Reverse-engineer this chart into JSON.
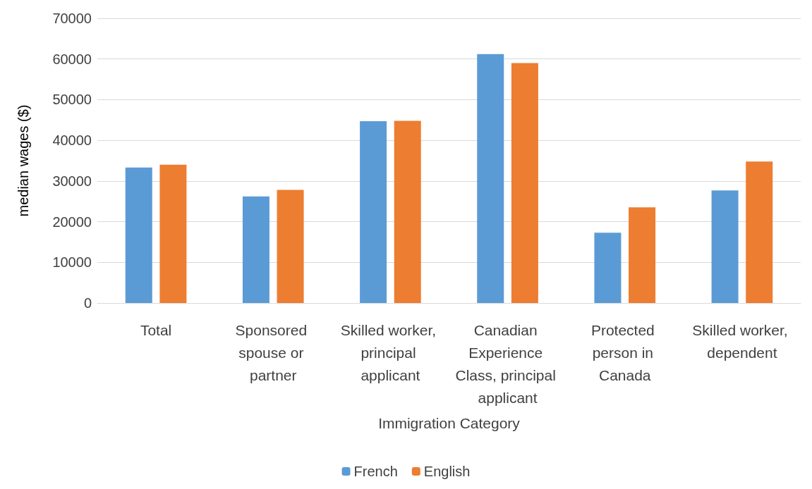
{
  "chart_data": {
    "type": "bar",
    "xlabel": "Immigration Category",
    "ylabel": "median wages ($)",
    "categories": [
      "Total",
      "Sponsored spouse or partner",
      "Skilled worker, principal applicant",
      "Canadian Experience Class, principal applicant",
      "Protected person in Canada",
      "Skilled worker, dependent"
    ],
    "series": [
      {
        "name": "French",
        "color": "#5b9bd5",
        "values": [
          33300,
          26200,
          44700,
          61200,
          17300,
          27700
        ]
      },
      {
        "name": "English",
        "color": "#ed7d31",
        "values": [
          34000,
          27800,
          44800,
          59000,
          23500,
          34800
        ]
      }
    ],
    "ylim": [
      0,
      70000
    ],
    "yticks": [
      0,
      10000,
      20000,
      30000,
      40000,
      50000,
      60000,
      70000
    ],
    "grid": "y",
    "legend": "bottom"
  }
}
